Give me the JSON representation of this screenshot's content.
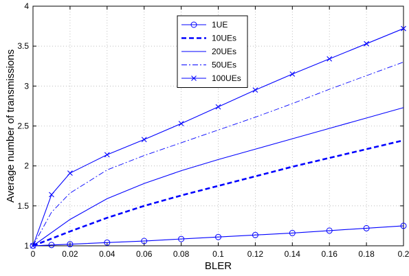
{
  "chart_data": {
    "type": "line",
    "title": "",
    "xlabel": "BLER",
    "ylabel": "Average number of transmissions",
    "xlim": [
      0,
      0.2
    ],
    "ylim": [
      1,
      4
    ],
    "x_ticks": [
      0,
      0.02,
      0.04,
      0.06,
      0.08,
      0.1,
      0.12,
      0.14,
      0.16,
      0.18,
      0.2
    ],
    "x_tick_labels": [
      "0",
      "0.02",
      "0.04",
      "0.06",
      "0.08",
      "0.1",
      "0.12",
      "0.14",
      "0.16",
      "0.18",
      "0.2"
    ],
    "y_ticks": [
      1,
      1.5,
      2,
      2.5,
      3,
      3.5,
      4
    ],
    "y_tick_labels": [
      "1",
      "1.5",
      "2",
      "2.5",
      "3",
      "3.5",
      "4"
    ],
    "grid": true,
    "legend_position": "top-center",
    "line_color": "#0000ff",
    "series": [
      {
        "name": "1UE",
        "style": "solid",
        "marker": "circle",
        "x": [
          0,
          0.01,
          0.02,
          0.04,
          0.06,
          0.08,
          0.1,
          0.12,
          0.14,
          0.16,
          0.18,
          0.2
        ],
        "y": [
          1,
          1.01,
          1.02,
          1.04,
          1.06,
          1.085,
          1.11,
          1.135,
          1.16,
          1.19,
          1.22,
          1.25
        ]
      },
      {
        "name": "10UEs",
        "style": "dashed-bold",
        "marker": "none",
        "x": [
          0,
          0.02,
          0.04,
          0.06,
          0.08,
          0.1,
          0.12,
          0.14,
          0.16,
          0.18,
          0.2
        ],
        "y": [
          1,
          1.18,
          1.35,
          1.5,
          1.63,
          1.75,
          1.87,
          1.99,
          2.1,
          2.21,
          2.32
        ]
      },
      {
        "name": "20UEs",
        "style": "solid",
        "marker": "none",
        "x": [
          0,
          0.02,
          0.04,
          0.06,
          0.08,
          0.1,
          0.12,
          0.14,
          0.16,
          0.18,
          0.2
        ],
        "y": [
          1,
          1.33,
          1.59,
          1.78,
          1.94,
          2.08,
          2.21,
          2.34,
          2.47,
          2.6,
          2.73
        ]
      },
      {
        "name": "50UEs",
        "style": "dashdot",
        "marker": "none",
        "x": [
          0,
          0.01,
          0.02,
          0.04,
          0.06,
          0.08,
          0.1,
          0.12,
          0.14,
          0.16,
          0.18,
          0.2
        ],
        "y": [
          1,
          1.42,
          1.66,
          1.95,
          2.13,
          2.29,
          2.45,
          2.61,
          2.78,
          2.96,
          3.13,
          3.3
        ]
      },
      {
        "name": "100UEs",
        "style": "solid",
        "marker": "x",
        "x": [
          0,
          0.01,
          0.02,
          0.04,
          0.06,
          0.08,
          0.1,
          0.12,
          0.14,
          0.16,
          0.18,
          0.2
        ],
        "y": [
          1,
          1.64,
          1.91,
          2.14,
          2.33,
          2.53,
          2.74,
          2.95,
          3.15,
          3.34,
          3.53,
          3.72
        ]
      }
    ]
  }
}
